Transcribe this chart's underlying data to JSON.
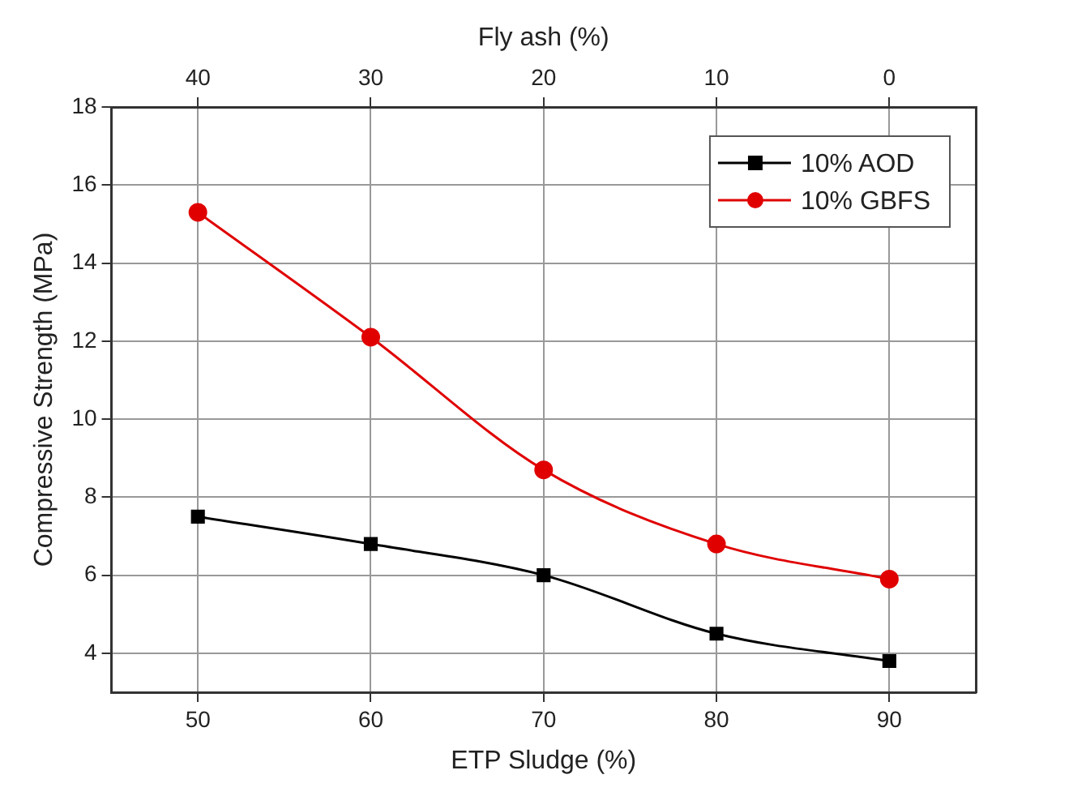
{
  "chart_data": {
    "type": "line",
    "xlabel": "ETP Sludge (%)",
    "ylabel": "Compressive Strength (MPa)",
    "x2label": "Fly ash (%)",
    "x": [
      50,
      60,
      70,
      80,
      90
    ],
    "series": [
      {
        "name": "10% AOD",
        "color": "#000000",
        "marker": "square",
        "values": [
          7.5,
          6.8,
          6.0,
          4.5,
          3.8
        ]
      },
      {
        "name": "10% GBFS",
        "color": "#e00000",
        "marker": "circle",
        "values": [
          15.3,
          12.1,
          8.7,
          6.8,
          5.9
        ]
      }
    ],
    "xlim": [
      45,
      95
    ],
    "xticks": [
      50,
      60,
      70,
      80,
      90
    ],
    "x2lim": [
      45,
      -5
    ],
    "x2ticks": [
      40,
      30,
      20,
      10,
      0
    ],
    "ylim": [
      3,
      18
    ],
    "yticks": [
      4,
      6,
      8,
      10,
      12,
      14,
      16,
      18
    ],
    "grid": true,
    "legend": "top right",
    "line_style": "solid"
  }
}
